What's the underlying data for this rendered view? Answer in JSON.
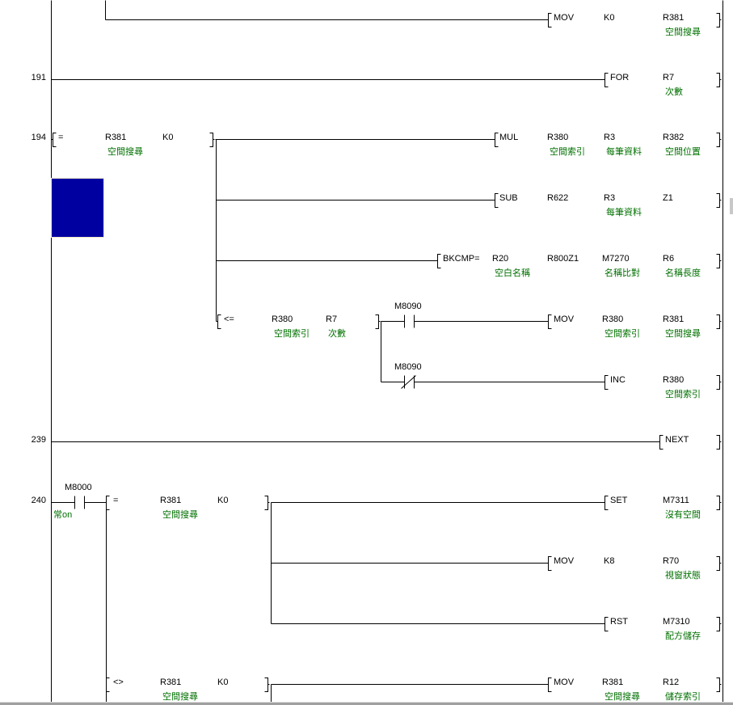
{
  "rungs": [
    {
      "step": "",
      "instructions": [
        {
          "op": "MOV",
          "operands": [
            {
              "name": "K0",
              "comment": ""
            },
            {
              "name": "R381",
              "comment": "空間搜尋"
            }
          ]
        }
      ]
    },
    {
      "step": "191",
      "instructions": [
        {
          "op": "FOR",
          "operands": [
            {
              "name": "R7",
              "comment": "次數"
            }
          ]
        }
      ]
    },
    {
      "step": "194",
      "conditions": [
        {
          "op": "=",
          "operands": [
            {
              "name": "R381",
              "comment": "空間搜尋"
            },
            {
              "name": "K0",
              "comment": ""
            }
          ]
        },
        {
          "op": "<=",
          "operands": [
            {
              "name": "R380",
              "comment": "空間索引"
            },
            {
              "name": "R7",
              "comment": "次數"
            }
          ]
        }
      ],
      "contacts": [
        {
          "name": "M8090",
          "comment": "",
          "type": "normally-open"
        },
        {
          "name": "M8090",
          "comment": "",
          "type": "normally-closed"
        }
      ],
      "instructions": [
        {
          "op": "MUL",
          "operands": [
            {
              "name": "R380",
              "comment": "空間索引"
            },
            {
              "name": "R3",
              "comment": "每筆資料"
            },
            {
              "name": "R382",
              "comment": "空間位置"
            }
          ]
        },
        {
          "op": "SUB",
          "operands": [
            {
              "name": "R622",
              "comment": ""
            },
            {
              "name": "R3",
              "comment": "每筆資料"
            },
            {
              "name": "Z1",
              "comment": ""
            }
          ]
        },
        {
          "op": "BKCMP=",
          "operands": [
            {
              "name": "R20",
              "comment": "空白名稱"
            },
            {
              "name": "R800Z1",
              "comment": ""
            },
            {
              "name": "M7270",
              "comment": "名稱比對"
            },
            {
              "name": "R6",
              "comment": "名稱長度"
            }
          ]
        },
        {
          "op": "MOV",
          "operands": [
            {
              "name": "R380",
              "comment": "空間索引"
            },
            {
              "name": "R381",
              "comment": "空間搜尋"
            }
          ]
        },
        {
          "op": "INC",
          "operands": [
            {
              "name": "R380",
              "comment": "空間索引"
            }
          ]
        }
      ]
    },
    {
      "step": "239",
      "instructions": [
        {
          "op": "NEXT",
          "operands": []
        }
      ]
    },
    {
      "step": "240",
      "contacts": [
        {
          "name": "M8000",
          "comment": "常on",
          "type": "normally-open"
        }
      ],
      "conditions": [
        {
          "op": "=",
          "operands": [
            {
              "name": "R381",
              "comment": "空間搜尋"
            },
            {
              "name": "K0",
              "comment": ""
            }
          ]
        },
        {
          "op": "<>",
          "operands": [
            {
              "name": "R381",
              "comment": "空間搜尋"
            },
            {
              "name": "K0",
              "comment": ""
            }
          ]
        }
      ],
      "instructions": [
        {
          "op": "SET",
          "operands": [
            {
              "name": "M7311",
              "comment": "沒有空間"
            }
          ]
        },
        {
          "op": "MOV",
          "operands": [
            {
              "name": "K8",
              "comment": ""
            },
            {
              "name": "R70",
              "comment": "視窗狀態"
            }
          ]
        },
        {
          "op": "RST",
          "operands": [
            {
              "name": "M7310",
              "comment": "配方儲存"
            }
          ]
        },
        {
          "op": "MOV",
          "operands": [
            {
              "name": "R381",
              "comment": "空間搜尋"
            },
            {
              "name": "R12",
              "comment": "儲存索引"
            }
          ]
        }
      ]
    }
  ],
  "colors": {
    "wire": "#000000",
    "comment": "#007000",
    "cursor": "#0000A0"
  }
}
